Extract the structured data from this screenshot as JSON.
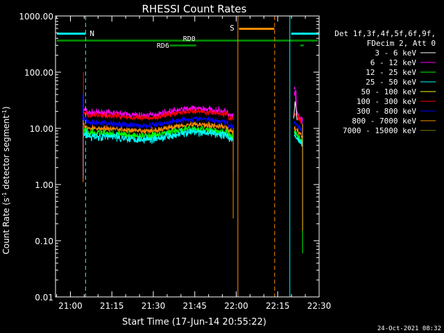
{
  "chart_data": {
    "type": "line",
    "title": "RHESSI Count Rates",
    "xlabel": "Start Time (17-Jun-14 20:55:22)",
    "ylabel_main": "Count Rate (s",
    "ylabel_sup1": "-1",
    "ylabel_mid": " detector segment",
    "ylabel_sup2": "-1",
    "ylabel_end": ")",
    "yscale": "log",
    "ylim": [
      0.01,
      1000
    ],
    "xlim_minutes": [
      -0.4,
      95.0
    ],
    "yticks": [
      {
        "value": 0.01,
        "label": "0.01"
      },
      {
        "value": 0.1,
        "label": "0.10"
      },
      {
        "value": 1,
        "label": "1.00"
      },
      {
        "value": 10,
        "label": "10.00"
      },
      {
        "value": 100,
        "label": "100.00"
      },
      {
        "value": 1000,
        "label": "1000.00"
      }
    ],
    "xticks": [
      {
        "minute": 5,
        "label": "21:00"
      },
      {
        "minute": 20,
        "label": "21:15"
      },
      {
        "minute": 35,
        "label": "21:30"
      },
      {
        "minute": 50,
        "label": "21:45"
      },
      {
        "minute": 65,
        "label": "22:00"
      },
      {
        "minute": 80,
        "label": "22:15"
      },
      {
        "minute": 95,
        "label": "22:30"
      }
    ],
    "legend": {
      "header": [
        "Det 1f,3f,4f,5f,6f,9f,",
        "FDecim 2, Att 0"
      ],
      "entries": [
        {
          "label": "3 - 6 keV",
          "color": "#ffffff"
        },
        {
          "label": "6 - 12 keV",
          "color": "#ff00ff"
        },
        {
          "label": "12 - 25 keV",
          "color": "#00ff00"
        },
        {
          "label": "25 - 50 keV",
          "color": "#00ffff"
        },
        {
          "label": "50 - 100 keV",
          "color": "#ffff00"
        },
        {
          "label": "100 - 300 keV",
          "color": "#ff0000"
        },
        {
          "label": "300 - 800 keV",
          "color": "#0000ff"
        },
        {
          "label": "800 - 7000 keV",
          "color": "#ff8c00"
        },
        {
          "label": "7000 - 15000 keV",
          "color": "#808000"
        }
      ]
    },
    "segments": [
      {
        "start": 9.6,
        "end": 64.0
      },
      {
        "start": 86.0,
        "end": 89.0
      }
    ],
    "series": [
      {
        "name": "6 - 12 keV",
        "color": "#ff00ff",
        "level": 19.0,
        "noise": 0.09
      },
      {
        "name": "100 - 300 keV",
        "color": "#ff0000",
        "level": 17.0,
        "noise": 0.08
      },
      {
        "name": "3 - 6 keV",
        "color": "#000000",
        "level": 14.5,
        "noise": 0.08
      },
      {
        "name": "300 - 800 keV",
        "color": "#0000ff",
        "level": 12.5,
        "noise": 0.08
      },
      {
        "name": "800 - 7000 keV",
        "color": "#ff8c00",
        "level": 10.0,
        "noise": 0.08
      },
      {
        "name": "12 - 25 keV",
        "color": "#00ff00",
        "level": 8.2,
        "noise": 0.1
      },
      {
        "name": "25 - 50 keV",
        "color": "#00ffff",
        "level": 7.2,
        "noise": 0.11
      }
    ],
    "markers": {
      "N_label": "N",
      "S_label": "S",
      "RD0_label": "RD0",
      "RD6_label": "RD6"
    },
    "vlines": [
      {
        "minute": -0.4,
        "color": "#00ffff",
        "dash": true
      },
      {
        "minute": 10.5,
        "color": "#00ffff",
        "dash": true
      },
      {
        "minute": 65.6,
        "color": "#ff8c00",
        "dash": false
      },
      {
        "minute": 78.9,
        "color": "#ff8c00",
        "dash": true
      },
      {
        "minute": 84.4,
        "color": "#00ffff",
        "dash": false
      },
      {
        "minute": 95.0,
        "color": "#00ffff",
        "dash": true
      }
    ],
    "timestamp": "24-Oct-2021 08:32"
  }
}
